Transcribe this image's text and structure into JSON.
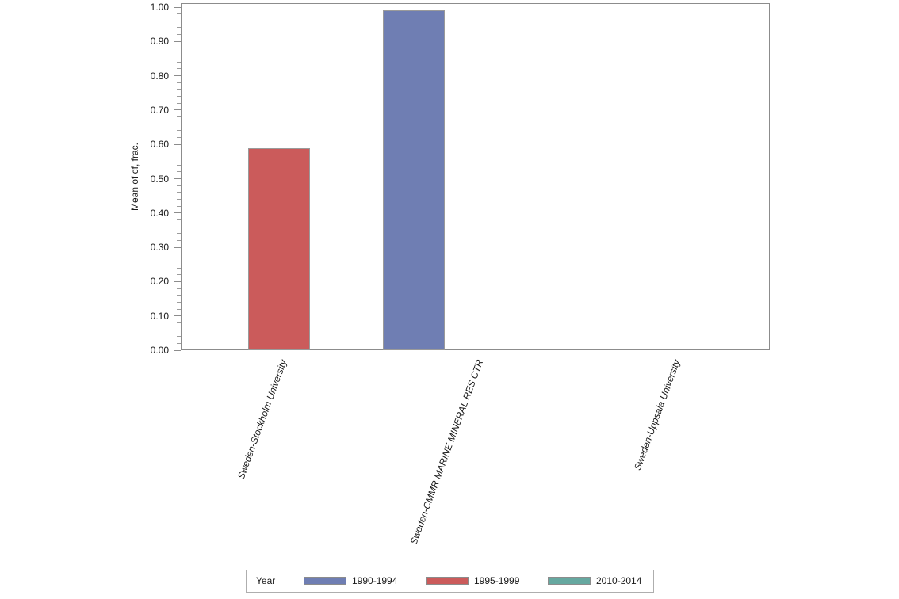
{
  "chart_data": {
    "type": "bar",
    "title": "",
    "xlabel": "",
    "ylabel": "Mean of cf, frac.",
    "ylim": [
      0.0,
      1.0
    ],
    "y_major_step": 0.1,
    "y_minor_step": 0.02,
    "y_tick_decimals": 2,
    "y_tick_labels": [
      "0.00",
      "0.10",
      "0.20",
      "0.30",
      "0.40",
      "0.50",
      "0.60",
      "0.70",
      "0.80",
      "0.90",
      "1.00"
    ],
    "grid": false,
    "legend_position": "bottom",
    "legend_title": "Year",
    "categories": [
      "Sweden-Stockholm University",
      "Sweden-CMMR MARINE MINERAL RES CTR",
      "Sweden-Uppsala University"
    ],
    "series": [
      {
        "name": "1990-1994",
        "color": "#6F7EB3",
        "values": [
          null,
          0.99,
          null
        ]
      },
      {
        "name": "1995-1999",
        "color": "#CB5B5B",
        "values": [
          0.59,
          null,
          null
        ]
      },
      {
        "name": "2010-2014",
        "color": "#66A8A0",
        "values": [
          null,
          null,
          null
        ]
      }
    ]
  },
  "colors": {
    "plot_border": "#8c8c8c",
    "bar_border": "#9a9a9a",
    "legend_border": "#aeaeae",
    "text": "#1a1a1a",
    "background": "#ffffff"
  }
}
